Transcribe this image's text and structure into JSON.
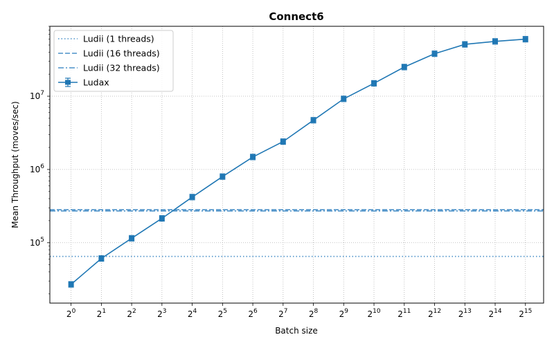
{
  "chart_data": {
    "type": "line",
    "title": "Connect6",
    "xlabel": "Batch size",
    "ylabel": "Mean Throughput (moves/sec)",
    "x_exponents": [
      0,
      1,
      2,
      3,
      4,
      5,
      6,
      7,
      8,
      9,
      10,
      11,
      12,
      13,
      14,
      15
    ],
    "x_tick_base": "2",
    "x_tick_exponents": [
      "0",
      "1",
      "2",
      "3",
      "4",
      "5",
      "6",
      "7",
      "8",
      "9",
      "10",
      "11",
      "12",
      "13",
      "14",
      "15"
    ],
    "y_scale": "log",
    "ylim": [
      15000,
      90000000
    ],
    "y_ticks": [
      {
        "value": 100000,
        "base": "10",
        "exp": "5"
      },
      {
        "value": 1000000,
        "base": "10",
        "exp": "6"
      },
      {
        "value": 10000000,
        "base": "10",
        "exp": "7"
      }
    ],
    "grid": true,
    "legend_position": "upper left",
    "series": [
      {
        "name": "Ludii (1 threads)",
        "kind": "hline",
        "value": 65000,
        "style": "dotted",
        "color": "#4a90c8"
      },
      {
        "name": "Ludii (16 threads)",
        "kind": "hline",
        "value": 282000,
        "style": "dashed",
        "color": "#4a90c8"
      },
      {
        "name": "Ludii (32 threads)",
        "kind": "hline",
        "value": 272000,
        "style": "dashdot",
        "color": "#4a90c8"
      },
      {
        "name": "Ludax",
        "kind": "line",
        "marker": "square",
        "color": "#1f77b4",
        "values": [
          27000,
          61000,
          115000,
          215000,
          420000,
          800000,
          1480000,
          2400000,
          4700000,
          9200000,
          15000000,
          25000000,
          38000000,
          51000000,
          56000000,
          60000000
        ]
      }
    ]
  }
}
